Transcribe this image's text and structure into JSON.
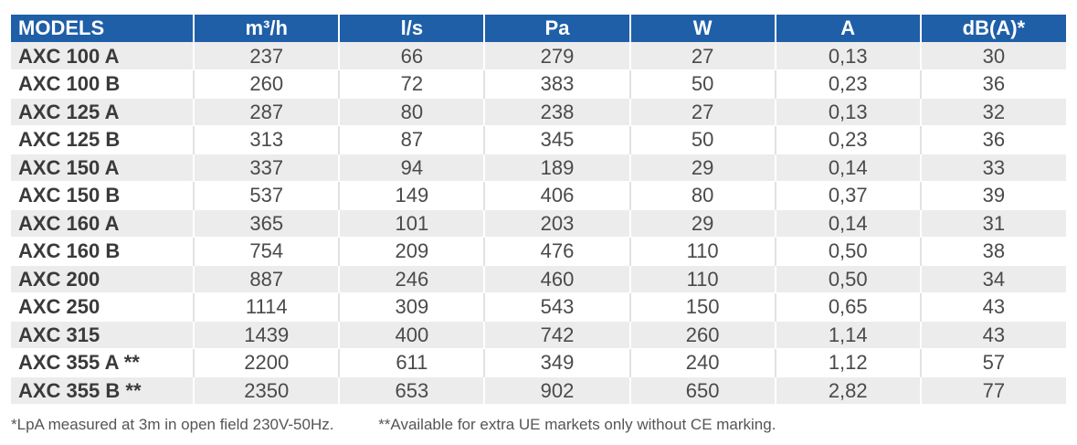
{
  "table": {
    "headers": [
      "MODELS",
      "m³/h",
      "l/s",
      "Pa",
      "W",
      "A",
      "dB(A)*"
    ],
    "rows": [
      [
        "AXC 100 A",
        "237",
        "66",
        "279",
        "27",
        "0,13",
        "30"
      ],
      [
        "AXC 100 B",
        "260",
        "72",
        "383",
        "50",
        "0,23",
        "36"
      ],
      [
        "AXC 125 A",
        "287",
        "80",
        "238",
        "27",
        "0,13",
        "32"
      ],
      [
        "AXC 125 B",
        "313",
        "87",
        "345",
        "50",
        "0,23",
        "36"
      ],
      [
        "AXC 150 A",
        "337",
        "94",
        "189",
        "29",
        "0,14",
        "33"
      ],
      [
        "AXC 150 B",
        "537",
        "149",
        "406",
        "80",
        "0,37",
        "39"
      ],
      [
        "AXC 160 A",
        "365",
        "101",
        "203",
        "29",
        "0,14",
        "31"
      ],
      [
        "AXC 160 B",
        "754",
        "209",
        "476",
        "110",
        "0,50",
        "38"
      ],
      [
        "AXC 200",
        "887",
        "246",
        "460",
        "110",
        "0,50",
        "34"
      ],
      [
        "AXC 250",
        "1114",
        "309",
        "543",
        "150",
        "0,65",
        "43"
      ],
      [
        "AXC 315",
        "1439",
        "400",
        "742",
        "260",
        "1,14",
        "43"
      ],
      [
        "AXC 355 A **",
        "2200",
        "611",
        "349",
        "240",
        "1,12",
        "57"
      ],
      [
        "AXC 355 B **",
        "2350",
        "653",
        "902",
        "650",
        "2,82",
        "77"
      ]
    ]
  },
  "footnotes": {
    "note_1": "*LpA measured at 3m in open field 230V-50Hz.",
    "note_2": "**Available for extra UE markets only without CE marking."
  },
  "colors": {
    "header_bg": "#1f5fa8",
    "header_text": "#ffffff",
    "row_alt_bg": "#ececec"
  }
}
